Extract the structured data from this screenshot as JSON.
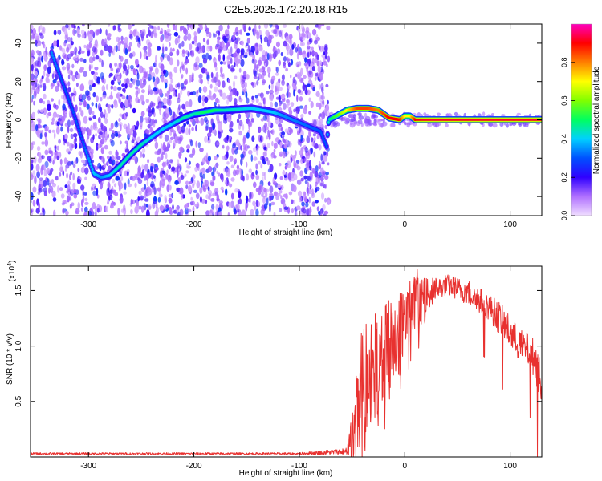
{
  "figure": {
    "title": "C2E5.2025.172.20.18.R15"
  },
  "chart_data": [
    {
      "type": "heatmap",
      "xlabel": "Height of straight line (km)",
      "ylabel": "Frequency (Hz)",
      "xlim": [
        -355,
        130
      ],
      "ylim": [
        -50,
        50
      ],
      "xticks": [
        -300,
        -200,
        -100,
        0,
        100
      ],
      "yticks": [
        -40,
        -20,
        0,
        20,
        40
      ],
      "xtick_labels": [
        "-300",
        "-200",
        "-100",
        "0",
        "100"
      ],
      "ytick_labels": [
        "-40",
        "-20",
        "0",
        "20",
        "40"
      ],
      "colorbar": {
        "label": "Normalized spectral amplitude",
        "range": [
          0,
          1
        ],
        "ticks": [
          0.0,
          0.2,
          0.4,
          0.6,
          0.8
        ],
        "tick_labels": [
          "0.0",
          "0.2",
          "0.4",
          "0.6",
          "0.8"
        ],
        "colors": [
          "#e6c8ff",
          "#b478ff",
          "#6400ff",
          "#0000ff",
          "#00c8ff",
          "#00ff80",
          "#80ff00",
          "#ffff00",
          "#ff8000",
          "#ff0000",
          "#ff00c8"
        ]
      },
      "noise_region": [
        -355,
        -72
      ],
      "ridge": {
        "x": [
          -335,
          -325,
          -315,
          -305,
          -295,
          -288,
          -280,
          -270,
          -260,
          -250,
          -240,
          -230,
          -220,
          -210,
          -200,
          -190,
          -180,
          -172,
          -145,
          -135,
          -125,
          -115,
          -80,
          -74,
          -72,
          -65,
          -55,
          -45,
          -35,
          -25,
          -15,
          -5,
          0,
          5,
          10,
          20,
          40,
          60,
          80,
          100,
          130
        ],
        "y": [
          35,
          20,
          5,
          -12,
          -28,
          -30,
          -29,
          -24,
          -18,
          -13,
          -9,
          -5,
          -2,
          1,
          3,
          4,
          5,
          5,
          6,
          5,
          4,
          2,
          -6,
          -14,
          0,
          2,
          5,
          6,
          6,
          5,
          1,
          0,
          2,
          2,
          0,
          0,
          0,
          0,
          0,
          0,
          0
        ],
        "amp": [
          0.35,
          0.3,
          0.3,
          0.3,
          0.4,
          0.35,
          0.4,
          0.45,
          0.45,
          0.45,
          0.4,
          0.4,
          0.4,
          0.45,
          0.45,
          0.5,
          0.5,
          0.45,
          0.4,
          0.4,
          0.4,
          0.35,
          0.3,
          0.3,
          0.45,
          0.55,
          0.7,
          0.85,
          0.85,
          0.8,
          0.9,
          0.9,
          0.7,
          0.7,
          0.9,
          0.92,
          0.92,
          0.92,
          0.92,
          0.92,
          0.92
        ]
      }
    },
    {
      "type": "line",
      "xlabel": "Height of straight line (km)",
      "ylabel": "SNR (10 * v/v)",
      "y_multiplier": "(x10",
      "y_multiplier_exp": "4",
      "y_multiplier_close": ")",
      "xlim": [
        -355,
        130
      ],
      "ylim": [
        0,
        1.72
      ],
      "xticks": [
        -300,
        -200,
        -100,
        0,
        100
      ],
      "yticks": [
        0.5,
        1.0,
        1.5
      ],
      "xtick_labels": [
        "-300",
        "-200",
        "-100",
        "0",
        "100"
      ],
      "ytick_labels": [
        "0.5",
        "1.0",
        "1.5"
      ],
      "line_color": "#e8312f",
      "series": [
        {
          "x": [
            -355,
            -300,
            -200,
            -100,
            -55,
            -50,
            -45,
            -40,
            -30,
            -20,
            -10,
            0,
            10,
            20,
            30,
            40,
            50,
            60,
            70,
            80,
            90,
            100,
            110,
            120,
            125,
            130
          ],
          "y": [
            0.03,
            0.03,
            0.03,
            0.03,
            0.05,
            0.15,
            0.35,
            0.55,
            0.8,
            0.9,
            1.05,
            1.2,
            1.35,
            1.45,
            1.52,
            1.55,
            1.52,
            1.48,
            1.42,
            1.35,
            1.25,
            1.12,
            1.0,
            0.95,
            0.82,
            0.7
          ],
          "spread": [
            0.01,
            0.01,
            0.01,
            0.01,
            0.03,
            0.2,
            0.5,
            0.6,
            0.5,
            0.45,
            0.4,
            0.35,
            0.3,
            0.15,
            0.1,
            0.1,
            0.1,
            0.12,
            0.12,
            0.12,
            0.15,
            0.15,
            0.15,
            0.15,
            0.2,
            0.25
          ]
        }
      ]
    }
  ]
}
